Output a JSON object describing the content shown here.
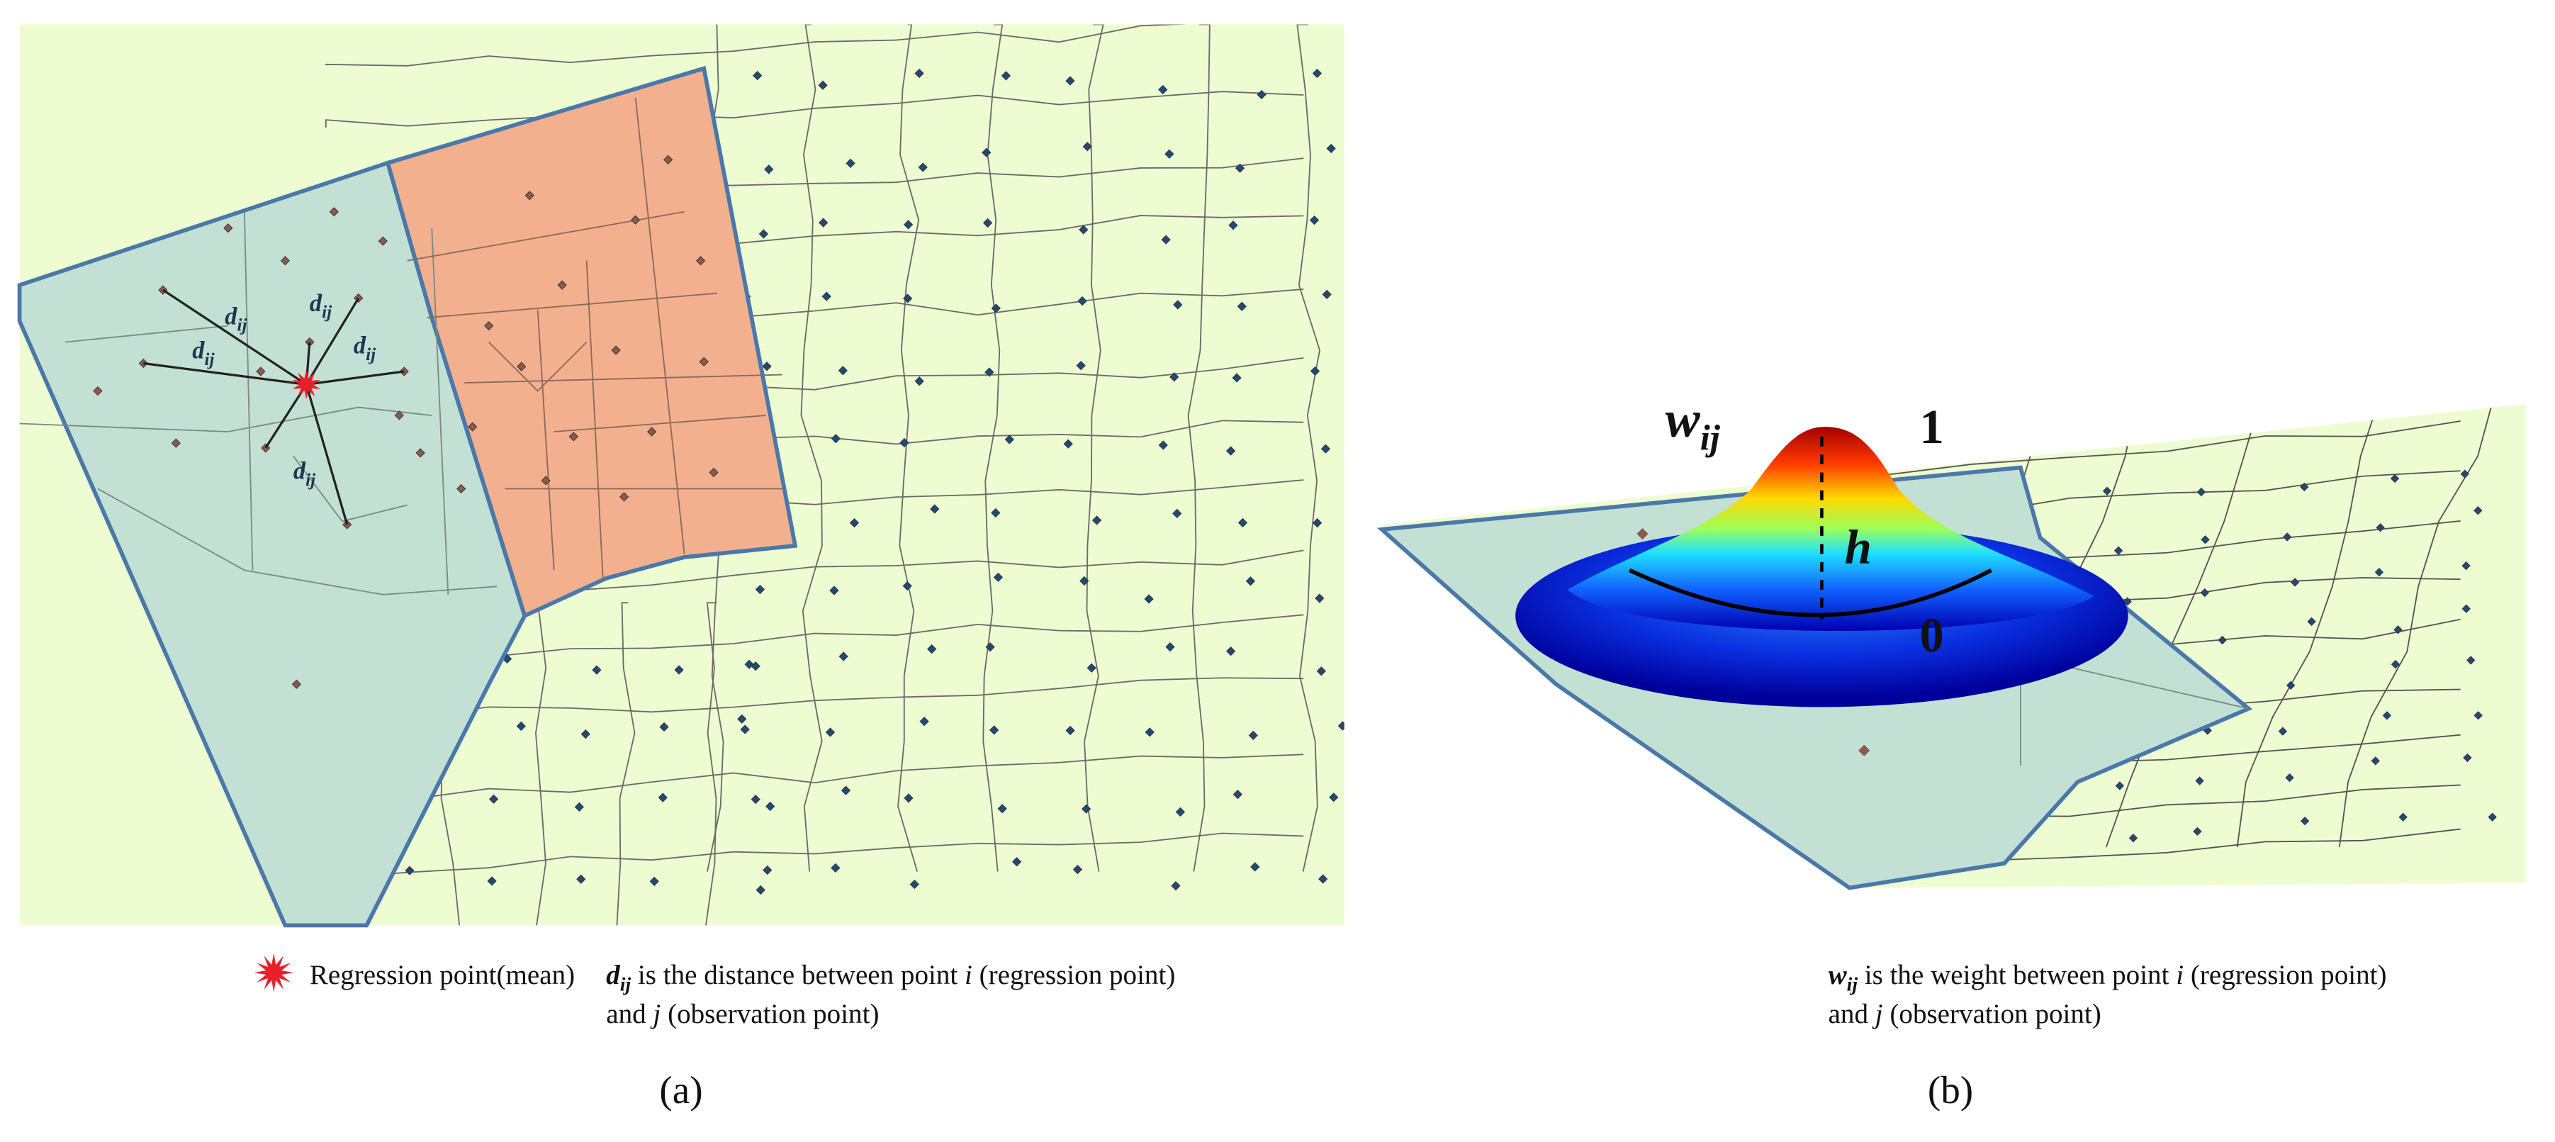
{
  "panel_a": {
    "distance_labels": [
      {
        "base": "d",
        "sub": "ij"
      },
      {
        "base": "d",
        "sub": "ij"
      },
      {
        "base": "d",
        "sub": "ij"
      },
      {
        "base": "d",
        "sub": "ij"
      },
      {
        "base": "d",
        "sub": "ij"
      }
    ],
    "legend": "Regression point(mean)",
    "caption": {
      "line1": {
        "var": "d",
        "sub": "ij",
        "text1": " is the distance between point ",
        "i": "i",
        "text2": " (regression point)"
      },
      "line2": {
        "text1": "and ",
        "j": "j",
        "text2": " (observation point)"
      }
    },
    "label": "(a)"
  },
  "panel_b": {
    "weight_label": {
      "base": "w",
      "sub": "ij"
    },
    "peak": "1",
    "bandwidth": "h",
    "base_value": "0",
    "caption": {
      "line1": {
        "var": "w",
        "sub": "ij",
        "text1": " is the weight between point ",
        "i": "i",
        "text2": " (regression point)"
      },
      "line2": {
        "text1": "and ",
        "j": "j",
        "text2": " (observation point)"
      }
    },
    "label": "(b)"
  }
}
